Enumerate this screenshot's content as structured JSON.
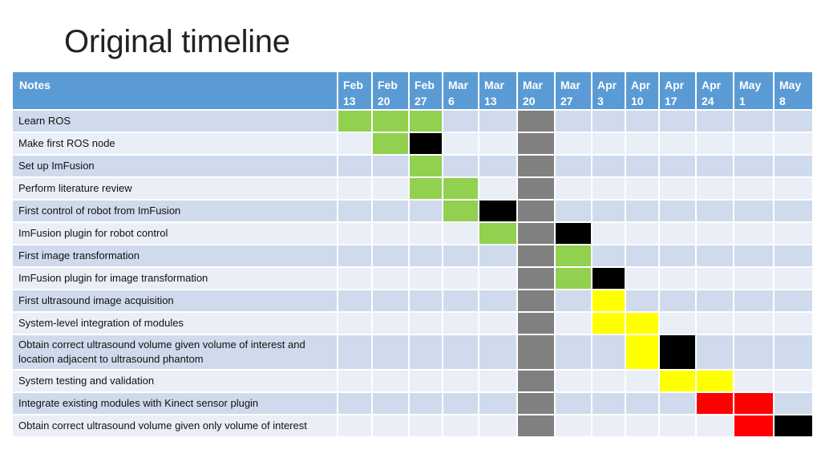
{
  "title": "Original timeline",
  "header": {
    "notes_label": "Notes",
    "weeks": [
      {
        "month": "Feb",
        "day": "13"
      },
      {
        "month": "Feb",
        "day": "20"
      },
      {
        "month": "Feb",
        "day": "27"
      },
      {
        "month": "Mar",
        "day": "6"
      },
      {
        "month": "Mar",
        "day": "13"
      },
      {
        "month": "Mar",
        "day": "20"
      },
      {
        "month": "Mar",
        "day": "27"
      },
      {
        "month": "Apr",
        "day": "3"
      },
      {
        "month": "Apr",
        "day": "10"
      },
      {
        "month": "Apr",
        "day": "17"
      },
      {
        "month": "Apr",
        "day": "24"
      },
      {
        "month": "May",
        "day": "1"
      },
      {
        "month": "May",
        "day": "8"
      }
    ]
  },
  "colors": {
    "green": "#92d050",
    "black": "#000000",
    "gray": "#808080",
    "yellow": "#ffff00",
    "red": "#ff0000"
  },
  "tasks": [
    {
      "label": "Learn ROS",
      "cells": [
        "green",
        "green",
        "green",
        "",
        "",
        "gray",
        "",
        "",
        "",
        "",
        "",
        "",
        ""
      ]
    },
    {
      "label": "Make first ROS node",
      "cells": [
        "",
        "green",
        "black",
        "",
        "",
        "gray",
        "",
        "",
        "",
        "",
        "",
        "",
        ""
      ]
    },
    {
      "label": "Set up ImFusion",
      "cells": [
        "",
        "",
        "green",
        "",
        "",
        "gray",
        "",
        "",
        "",
        "",
        "",
        "",
        ""
      ]
    },
    {
      "label": "Perform literature review",
      "cells": [
        "",
        "",
        "green",
        "green",
        "",
        "gray",
        "",
        "",
        "",
        "",
        "",
        "",
        ""
      ]
    },
    {
      "label": "First control of robot from ImFusion",
      "cells": [
        "",
        "",
        "",
        "green",
        "black",
        "gray",
        "",
        "",
        "",
        "",
        "",
        "",
        ""
      ]
    },
    {
      "label": "ImFusion plugin for robot control",
      "cells": [
        "",
        "",
        "",
        "",
        "green",
        "gray",
        "black",
        "",
        "",
        "",
        "",
        "",
        ""
      ]
    },
    {
      "label": "First image transformation",
      "cells": [
        "",
        "",
        "",
        "",
        "",
        "gray",
        "green",
        "",
        "",
        "",
        "",
        "",
        ""
      ]
    },
    {
      "label": "ImFusion plugin for image transformation",
      "cells": [
        "",
        "",
        "",
        "",
        "",
        "gray",
        "green",
        "black",
        "",
        "",
        "",
        "",
        ""
      ]
    },
    {
      "label": "First ultrasound image acquisition",
      "cells": [
        "",
        "",
        "",
        "",
        "",
        "gray",
        "",
        "yellow",
        "",
        "",
        "",
        "",
        ""
      ]
    },
    {
      "label": "System-level integration of modules",
      "cells": [
        "",
        "",
        "",
        "",
        "",
        "gray",
        "",
        "yellow",
        "yellow",
        "",
        "",
        "",
        ""
      ]
    },
    {
      "label": "Obtain correct ultrasound volume given volume of interest and location adjacent to ultrasound phantom",
      "tall": true,
      "cells": [
        "",
        "",
        "",
        "",
        "",
        "gray",
        "",
        "",
        "yellow",
        "black",
        "",
        "",
        ""
      ]
    },
    {
      "label": "System testing and validation",
      "cells": [
        "",
        "",
        "",
        "",
        "",
        "gray",
        "",
        "",
        "",
        "yellow",
        "yellow",
        "",
        ""
      ]
    },
    {
      "label": "Integrate existing modules with Kinect sensor plugin",
      "cells": [
        "",
        "",
        "",
        "",
        "",
        "gray",
        "",
        "",
        "",
        "",
        "red",
        "red",
        ""
      ]
    },
    {
      "label": "Obtain correct ultrasound volume given only volume of interest",
      "cells": [
        "",
        "",
        "",
        "",
        "",
        "gray",
        "",
        "",
        "",
        "",
        "",
        "red",
        "black"
      ]
    }
  ]
}
